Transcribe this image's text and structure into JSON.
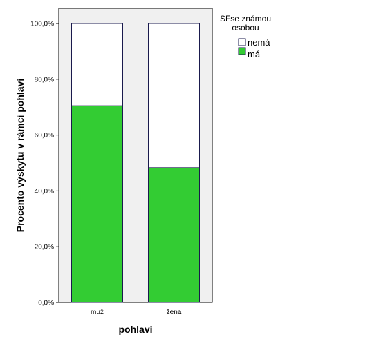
{
  "chart_data": {
    "type": "bar",
    "stacked": true,
    "xlabel": "pohlavi",
    "ylabel": "Procento výskytu v rámci pohlaví",
    "categories": [
      "muž",
      "žena"
    ],
    "ylim": [
      0,
      100
    ],
    "yticks": [
      "0,0%",
      "20,0%",
      "40,0%",
      "60,0%",
      "80,0%",
      "100,0%"
    ],
    "series": [
      {
        "name": "má",
        "color": "#33cc33",
        "values": [
          70.5,
          48.3
        ]
      },
      {
        "name": "nemá",
        "color": "#ffffff",
        "values": [
          29.5,
          51.7
        ]
      }
    ],
    "legend": {
      "title_lines": [
        "SFse známou",
        "osobou"
      ],
      "placement": "right"
    },
    "plot_background": "#f0f0f0",
    "bar_outline": "#1a1a4d",
    "grid": false
  }
}
